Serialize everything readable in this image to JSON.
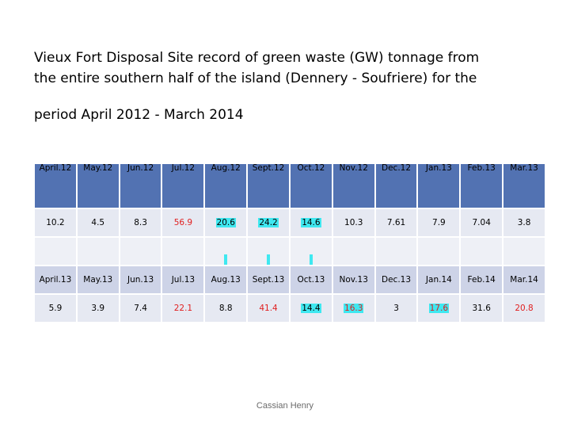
{
  "title": {
    "line1": "Vieux Fort Disposal Site record of green waste (GW) tonnage from",
    "line2": "the entire southern half of the island  (Dennery - Soufriere) for the",
    "line3": "period April 2012 - March 2014"
  },
  "table": {
    "months_2012_13": [
      "April.12",
      "May.12",
      "Jun.12",
      "Jul.12",
      "Aug.12",
      "Sept.12",
      "Oct.12",
      "Nov.12",
      "Dec.12",
      "Jan.13",
      "Feb.13",
      "Mar.13"
    ],
    "values_2012_13": [
      "10.2",
      "4.5",
      "8.3",
      "56.9",
      "20.6",
      "24.2",
      "14.6",
      "10.3",
      "7.61",
      "7.9",
      "7.04",
      "3.8"
    ],
    "months_2013_14": [
      "April.13",
      "May.13",
      "Jun.13",
      "Jul.13",
      "Aug.13",
      "Sept.13",
      "Oct.13",
      "Nov.13",
      "Dec.13",
      "Jan.14",
      "Feb.14",
      "Mar.14"
    ],
    "values_2013_14": [
      "5.9",
      "3.9",
      "7.4",
      "22.1",
      "8.8",
      "41.4",
      "14.4",
      "16.3",
      "3",
      "17.6",
      "31.6",
      "20.8"
    ]
  },
  "colors": {
    "header_blue": "#5272b2",
    "highlight_cyan": "#3fe8f0",
    "red_text": "#e01f1f"
  },
  "footer": "Cassian Henry"
}
